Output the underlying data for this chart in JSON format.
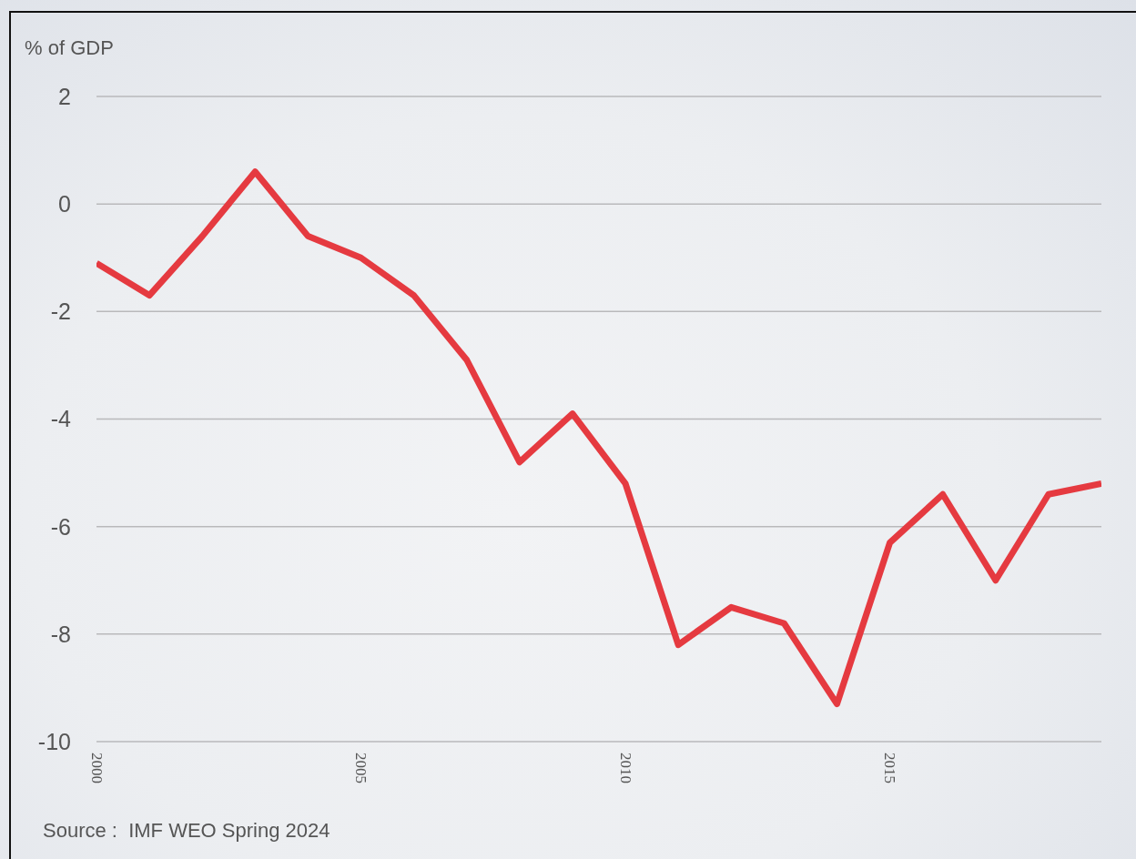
{
  "chart_data": {
    "type": "line",
    "ylabel": "% of GDP",
    "annotations": [
      "Source :  IMF WEO Spring 2024"
    ],
    "x": [
      2000,
      2001,
      2002,
      2003,
      2004,
      2005,
      2006,
      2007,
      2008,
      2009,
      2010,
      2011,
      2012,
      2013,
      2014,
      2015,
      2016,
      2017,
      2018,
      2019
    ],
    "values": [
      -1.1,
      -1.7,
      -0.6,
      0.6,
      -0.6,
      -1.0,
      -1.7,
      -2.9,
      -4.8,
      -3.9,
      -5.2,
      -8.2,
      -7.5,
      -7.8,
      -9.3,
      -6.3,
      -5.4,
      -7.0,
      -5.4,
      -5.2
    ],
    "color": "#e53a40",
    "xlim": [
      2000,
      2019
    ],
    "xticks": [
      2000,
      2005,
      2010,
      2015
    ],
    "ylim": [
      -10,
      2
    ],
    "yticks": [
      -10,
      -8,
      -6,
      -4,
      -2,
      0,
      2
    ],
    "grid": "y"
  }
}
